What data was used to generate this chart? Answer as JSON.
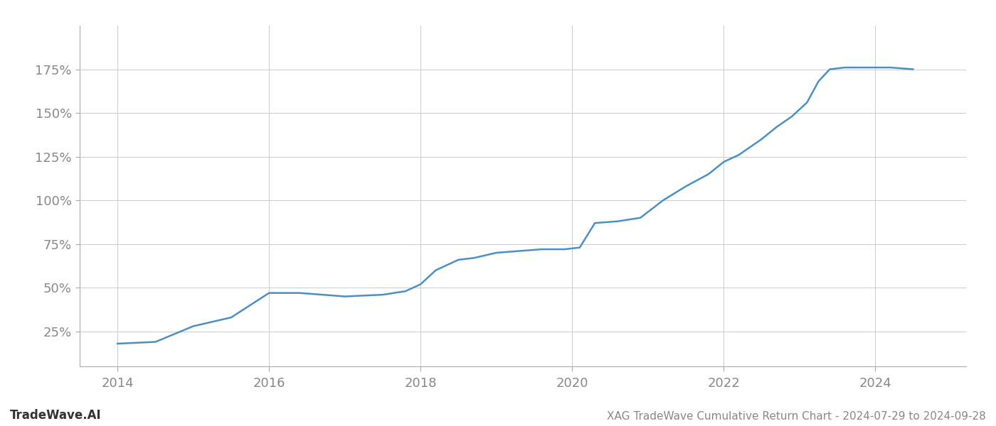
{
  "title": "XAG TradeWave Cumulative Return Chart - 2024-07-29 to 2024-09-28",
  "watermark": "TradeWave.AI",
  "line_color": "#4a90c4",
  "line_width": 1.8,
  "background_color": "#ffffff",
  "grid_color": "#cccccc",
  "x_years": [
    2014.0,
    2014.5,
    2015.0,
    2015.5,
    2016.0,
    2016.4,
    2016.7,
    2017.0,
    2017.5,
    2017.8,
    2018.0,
    2018.2,
    2018.5,
    2018.7,
    2019.0,
    2019.3,
    2019.6,
    2019.9,
    2020.1,
    2020.3,
    2020.6,
    2020.9,
    2021.2,
    2021.5,
    2021.8,
    2022.0,
    2022.2,
    2022.5,
    2022.7,
    2022.9,
    2023.1,
    2023.25,
    2023.4,
    2023.6,
    2023.8,
    2024.0,
    2024.2,
    2024.5
  ],
  "y_values": [
    18,
    19,
    28,
    33,
    47,
    47,
    46,
    45,
    46,
    48,
    52,
    60,
    66,
    67,
    70,
    71,
    72,
    72,
    73,
    87,
    88,
    90,
    100,
    108,
    115,
    122,
    126,
    135,
    142,
    148,
    156,
    168,
    175,
    176,
    176,
    176,
    176,
    175
  ],
  "xlim": [
    2013.5,
    2025.2
  ],
  "ylim": [
    5,
    200
  ],
  "yticks": [
    25,
    50,
    75,
    100,
    125,
    150,
    175
  ],
  "xticks": [
    2014,
    2016,
    2018,
    2020,
    2022,
    2024
  ],
  "tick_label_color": "#888888",
  "tick_fontsize": 13,
  "title_fontsize": 11,
  "watermark_fontsize": 12,
  "spine_color": "#aaaaaa"
}
